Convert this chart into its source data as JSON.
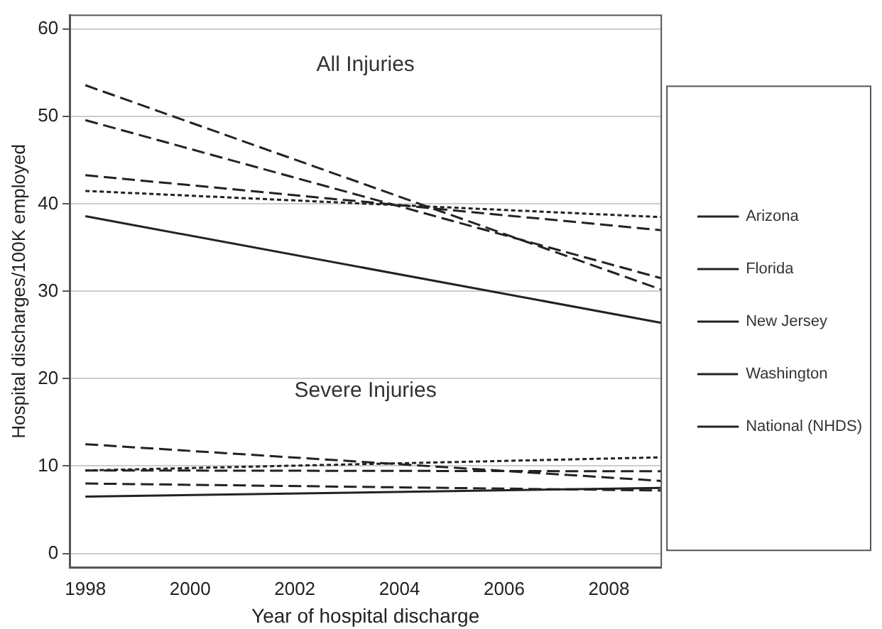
{
  "chart_data": {
    "type": "line",
    "xlabel": "Year of hospital discharge",
    "ylabel": "Hospital discharges/100K employed",
    "x": [
      1998,
      2009
    ],
    "series": [
      {
        "name": "Arizona",
        "color": "#222222",
        "line_style": "dashed",
        "values": [
          43.3,
          37.0
        ]
      },
      {
        "name": "Florida",
        "color": "#222222",
        "line_style": "dashed",
        "values": [
          49.6,
          31.5
        ]
      },
      {
        "name": "New Jersey",
        "color": "#222222",
        "line_style": "dashed",
        "values": [
          53.6,
          30.2
        ]
      },
      {
        "name": "Washington",
        "color": "#222222",
        "line_style": "dotted",
        "values": [
          41.5,
          38.5
        ]
      },
      {
        "name": "National (NHDS)",
        "color": "#222222",
        "line_style": "solid",
        "values": [
          38.6,
          26.4
        ]
      },
      {
        "color": "#222222",
        "line_style": "dashed",
        "values": [
          9.5,
          9.4
        ]
      },
      {
        "color": "#222222",
        "line_style": "dashed",
        "values": [
          12.5,
          8.3
        ]
      },
      {
        "color": "#222222",
        "line_style": "dashed",
        "values": [
          8.0,
          7.2
        ]
      },
      {
        "color": "#222222",
        "line_style": "dotted",
        "values": [
          9.5,
          11.0
        ]
      },
      {
        "color": "#222222",
        "line_style": "solid",
        "values": [
          6.5,
          7.5
        ]
      }
    ],
    "xlim": [
      1997.7,
      2009
    ],
    "xticks": [
      1998,
      2000,
      2002,
      2004,
      2006,
      2008
    ],
    "ylim": [
      -1.6,
      61.6
    ],
    "yticks": [
      0,
      10,
      20,
      30,
      40,
      50,
      60
    ],
    "grid": "y",
    "legend": "right",
    "marker": "none",
    "annotations": [
      "All Injuries",
      "Severe Injuries"
    ]
  }
}
